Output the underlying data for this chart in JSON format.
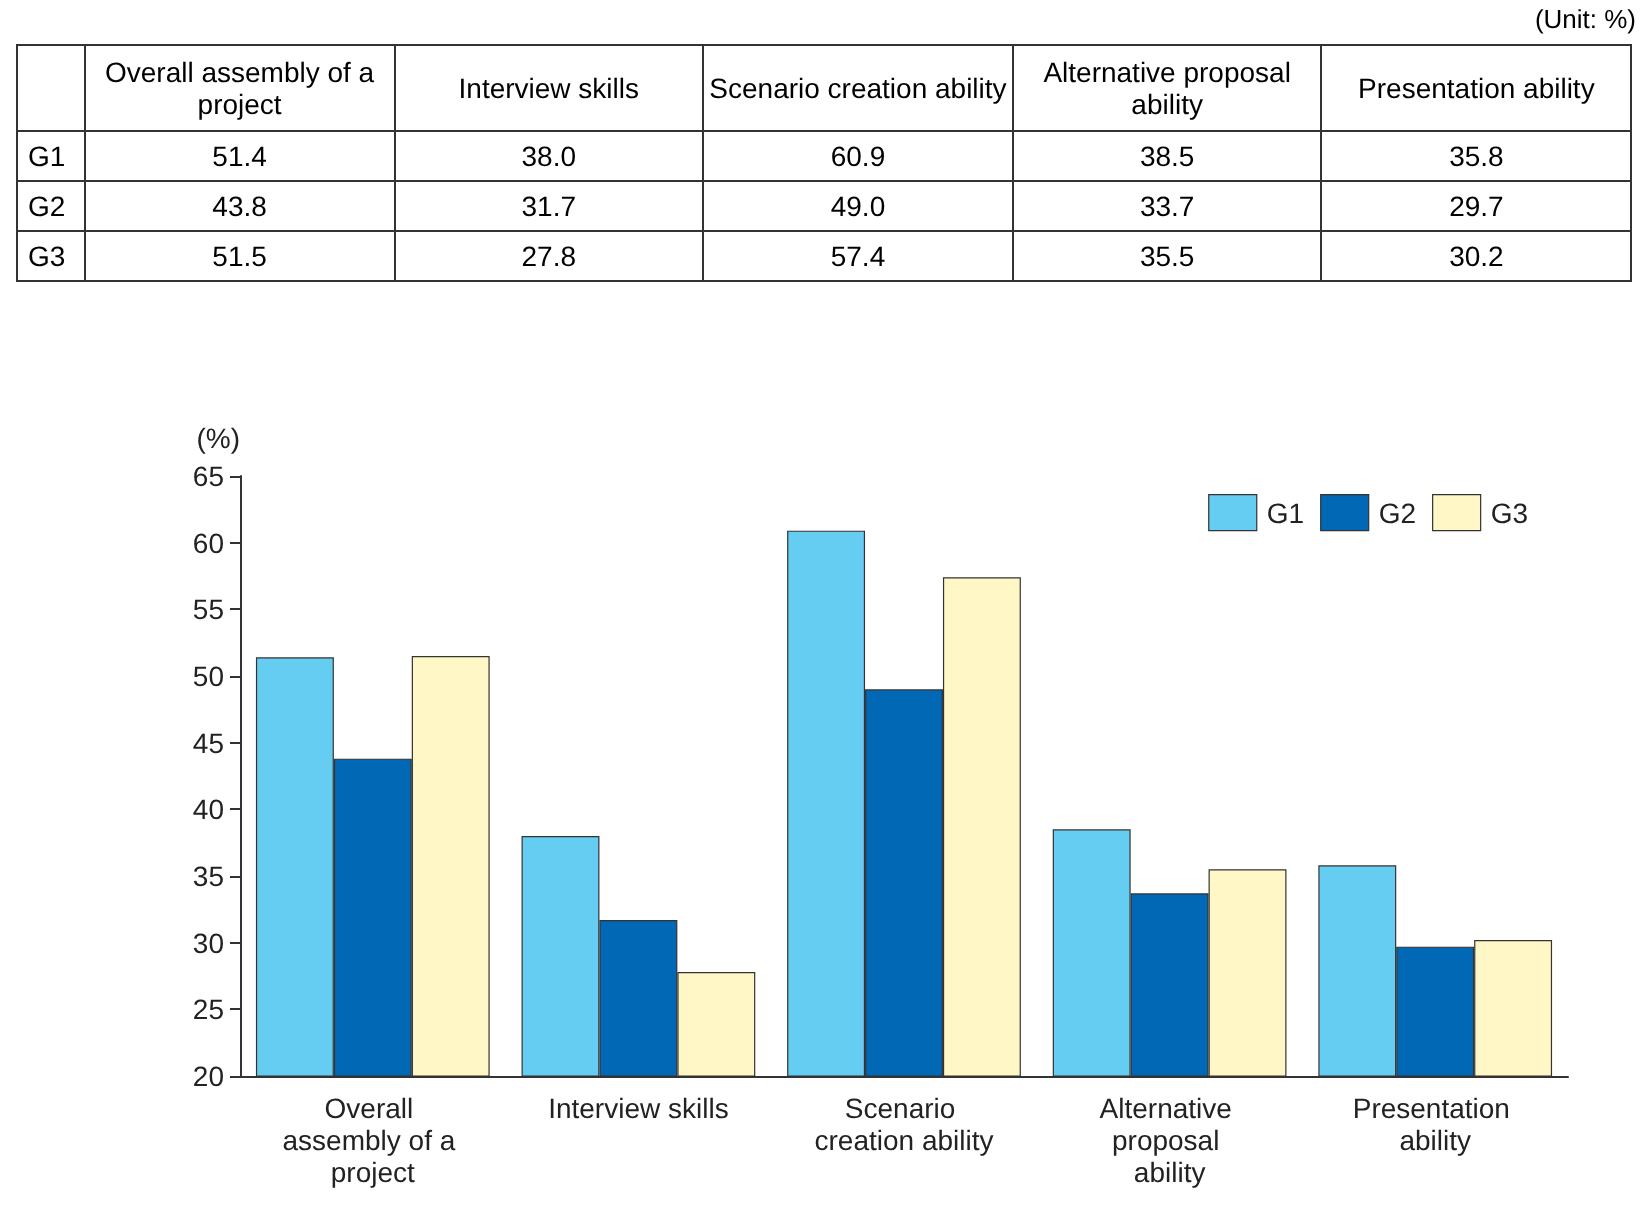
{
  "chart_data": {
    "type": "bar",
    "ylabel": "(%)",
    "annotations": [
      "(Unit: %)"
    ],
    "categories": [
      "Overall assembly of a project",
      "Interview skills",
      "Scenario creation ability",
      "Alternative proposal ability",
      "Presentation ability"
    ],
    "series": [
      {
        "name": "G1",
        "color": "#66cdf2",
        "values": [
          51.4,
          38.0,
          60.9,
          38.5,
          35.8
        ],
        "value_labels": [
          "51.4",
          "38.0",
          "60.9",
          "38.5",
          "35.8"
        ]
      },
      {
        "name": "G2",
        "color": "#0068b4",
        "values": [
          43.8,
          31.7,
          49.0,
          33.7,
          29.7
        ],
        "value_labels": [
          "43.8",
          "31.7",
          "49.0",
          "33.7",
          "29.7"
        ]
      },
      {
        "name": "G3",
        "color": "#fff8c6",
        "values": [
          51.5,
          27.8,
          57.4,
          35.5,
          30.2
        ],
        "value_labels": [
          "51.5",
          "27.8",
          "57.4",
          "35.5",
          "30.2"
        ]
      }
    ],
    "ylim": [
      20,
      65
    ],
    "yticks": [
      20,
      25,
      30,
      35,
      40,
      45,
      50,
      55,
      60,
      65
    ],
    "grid": false,
    "legend": "top right"
  }
}
